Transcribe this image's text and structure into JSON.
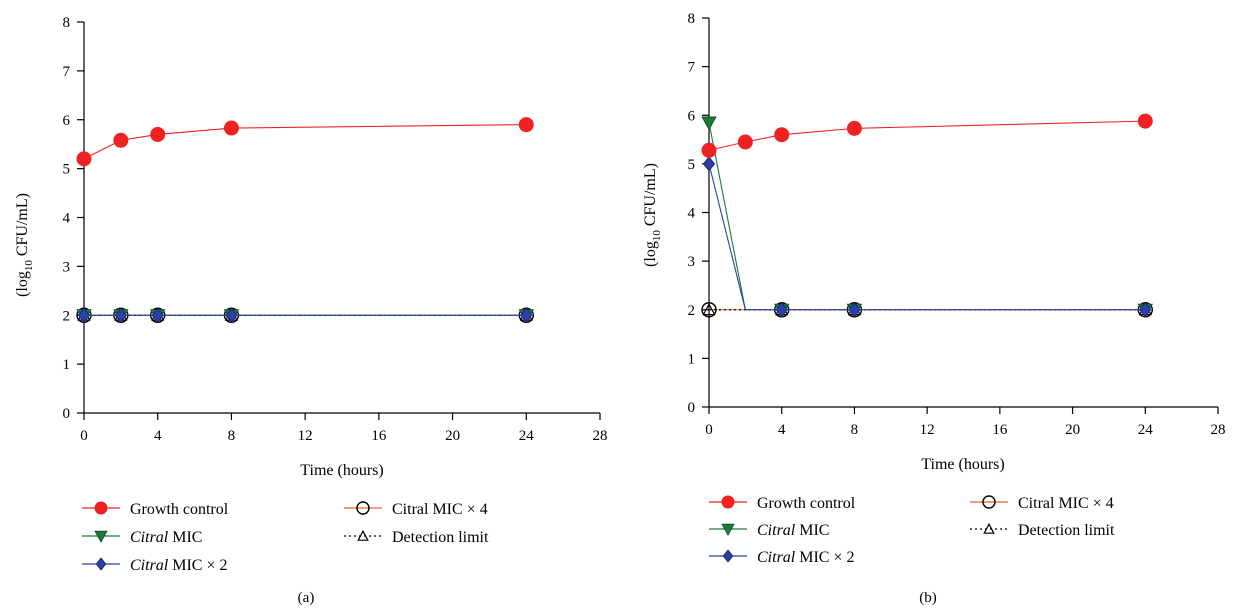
{
  "colors": {
    "growth_control": "#ee2222",
    "citral_mic": "#1a7a3a",
    "citral_mic_x2": "#2b3fa8",
    "citral_mic_x4": "#e8642a",
    "detection_limit": "#000000"
  },
  "legend": {
    "growth_control": "Growth control",
    "citral_mic_italic": "Citral",
    "citral_mic_rest": " MIC",
    "citral_mic_x2_italic": "Citral",
    "citral_mic_x2_rest": " MIC × 2",
    "citral_mic_x4": "Citral MIC × 4",
    "detection_limit": "Detection limit"
  },
  "chart_data": [
    {
      "type": "line",
      "panel_label": "(a)",
      "xlabel": "Time (hours)",
      "ylabel": "(log10 CFU/mL)",
      "ylabel_parts": {
        "pre": "(log",
        "sub": "10",
        "post": " CFU/mL)"
      },
      "xlim": [
        0,
        28
      ],
      "ylim": [
        0,
        8
      ],
      "xticks": [
        0,
        4,
        8,
        12,
        16,
        20,
        24,
        28
      ],
      "yticks": [
        0,
        1,
        2,
        3,
        4,
        5,
        6,
        7,
        8
      ],
      "legend_position": "bottom",
      "series": [
        {
          "name": "Growth control",
          "key": "growth_control",
          "marker": "circle-filled",
          "x": [
            0,
            2,
            4,
            8,
            24
          ],
          "y": [
            5.2,
            5.58,
            5.7,
            5.83,
            5.9
          ]
        },
        {
          "name": "Citral MIC",
          "key": "citral_mic",
          "marker": "triangle-down",
          "x": [
            0,
            2,
            4,
            8,
            24
          ],
          "y": [
            2,
            2,
            2,
            2,
            2
          ]
        },
        {
          "name": "Citral MIC × 2",
          "key": "citral_mic_x2",
          "marker": "diamond",
          "x": [
            0,
            2,
            4,
            8,
            24
          ],
          "y": [
            2,
            2,
            2,
            2,
            2
          ]
        },
        {
          "name": "Citral MIC × 4",
          "key": "citral_mic_x4",
          "marker": "circle-open",
          "x": [
            0,
            2,
            4,
            8,
            24
          ],
          "y": [
            2,
            2,
            2,
            2,
            2
          ]
        },
        {
          "name": "Detection limit",
          "key": "detection_limit",
          "marker": "triangle-open",
          "dashed": true,
          "x": [
            0,
            2,
            4,
            8,
            24
          ],
          "y": [
            2,
            2,
            2,
            2,
            2
          ]
        }
      ]
    },
    {
      "type": "line",
      "panel_label": "(b)",
      "xlabel": "Time (hours)",
      "ylabel": "(log10 CFU/mL)",
      "ylabel_parts": {
        "pre": "(log",
        "sub": "10",
        "post": " CFU/mL)"
      },
      "xlim": [
        0,
        28
      ],
      "ylim": [
        0,
        8
      ],
      "xticks": [
        0,
        4,
        8,
        12,
        16,
        20,
        24,
        28
      ],
      "yticks": [
        0,
        1,
        2,
        3,
        4,
        5,
        6,
        7,
        8
      ],
      "legend_position": "bottom",
      "series": [
        {
          "name": "Growth control",
          "key": "growth_control",
          "marker": "circle-filled",
          "x": [
            0,
            2,
            4,
            8,
            24
          ],
          "y": [
            5.28,
            5.45,
            5.6,
            5.73,
            5.88
          ]
        },
        {
          "name": "Citral MIC",
          "key": "citral_mic",
          "marker": "triangle-down",
          "x": [
            0,
            2,
            4,
            8,
            24
          ],
          "y": [
            5.85,
            2,
            2,
            2,
            2
          ],
          "marker_at": [
            0,
            4,
            8,
            24
          ]
        },
        {
          "name": "Citral MIC × 2",
          "key": "citral_mic_x2",
          "marker": "diamond",
          "x": [
            0,
            2,
            4,
            8,
            24
          ],
          "y": [
            5.0,
            2,
            2,
            2,
            2
          ],
          "marker_at": [
            0,
            4,
            8,
            24
          ]
        },
        {
          "name": "Citral MIC × 4",
          "key": "citral_mic_x4",
          "marker": "circle-open",
          "x": [
            0,
            4,
            8,
            24
          ],
          "y": [
            2,
            2,
            2,
            2
          ]
        },
        {
          "name": "Detection limit",
          "key": "detection_limit",
          "marker": "triangle-open",
          "dashed": true,
          "x": [
            0,
            4,
            8,
            24
          ],
          "y": [
            2,
            2,
            2,
            2
          ]
        }
      ]
    }
  ]
}
